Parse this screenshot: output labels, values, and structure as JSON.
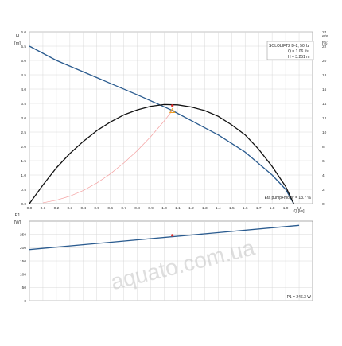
{
  "chart_data": [
    {
      "type": "line",
      "panel": "upper",
      "x_axis": {
        "label": "Q [l/s]",
        "ticks": [
          0,
          0.1,
          0.2,
          0.3,
          0.4,
          0.5,
          0.6,
          0.7,
          0.8,
          0.9,
          1.0,
          1.1,
          1.2,
          1.3,
          1.4,
          1.5,
          1.6,
          1.7,
          1.8,
          1.9,
          2.0
        ],
        "range": [
          0,
          2.1
        ]
      },
      "y_left": {
        "label_symbol": "H",
        "label_unit": "[m]",
        "ticks": [
          0.0,
          0.5,
          1.0,
          1.5,
          2.0,
          2.5,
          3.0,
          3.5,
          4.0,
          4.5,
          5.0,
          5.5,
          6.0
        ],
        "range": [
          0,
          6.0
        ]
      },
      "y_right": {
        "label_symbol": "eta",
        "label_unit": "[%]",
        "ticks": [
          0,
          2,
          4,
          6,
          8,
          10,
          12,
          14,
          16,
          18,
          20,
          22,
          24
        ],
        "range": [
          0,
          24
        ]
      },
      "grid": true,
      "series": [
        {
          "key": "head",
          "axis": "left",
          "color": "#2a5b8f",
          "x": [
            0,
            0.2,
            0.4,
            0.6,
            0.8,
            1.0,
            1.06,
            1.2,
            1.4,
            1.6,
            1.8,
            1.9,
            1.96
          ],
          "y": [
            5.5,
            5.0,
            4.6,
            4.2,
            3.8,
            3.38,
            3.25,
            2.9,
            2.4,
            1.8,
            1.0,
            0.5,
            0.0
          ]
        },
        {
          "key": "efficiency",
          "axis": "right",
          "color": "#111111",
          "x": [
            0,
            0.1,
            0.2,
            0.3,
            0.4,
            0.5,
            0.6,
            0.7,
            0.8,
            0.9,
            1.0,
            1.1,
            1.2,
            1.3,
            1.4,
            1.5,
            1.6,
            1.7,
            1.8,
            1.9,
            1.96
          ],
          "y": [
            0,
            2.6,
            5.0,
            7.0,
            8.7,
            10.2,
            11.4,
            12.4,
            13.1,
            13.6,
            13.85,
            13.8,
            13.5,
            13.0,
            12.2,
            11.0,
            9.6,
            7.6,
            5.2,
            2.4,
            0
          ]
        },
        {
          "key": "system-curve",
          "axis": "left",
          "color": "#f4a0a0",
          "x": [
            0.1,
            0.2,
            0.3,
            0.4,
            0.5,
            0.6,
            0.7,
            0.8,
            0.9,
            1.0,
            1.06
          ],
          "y": [
            0.03,
            0.12,
            0.26,
            0.46,
            0.72,
            1.04,
            1.42,
            1.85,
            2.34,
            2.89,
            3.25
          ]
        }
      ],
      "duty_point": {
        "x": 1.06,
        "y": 3.25,
        "color": "#f0a020"
      },
      "eta_point": {
        "x": 1.06,
        "y": 13.7,
        "color": "#e03030"
      },
      "legend": {
        "title": "SOLOLIFT2 D-2, 50Hz",
        "line_q": "Q = 1.06 l/s",
        "line_h": "H = 3.251 m"
      },
      "annotation": "Eta pump+motor = 13.7 %"
    },
    {
      "type": "line",
      "panel": "lower",
      "x_axis": {
        "range": [
          0,
          2.1
        ]
      },
      "y_left": {
        "label_symbol": "P1",
        "label_unit": "[W]",
        "ticks": [
          0,
          50,
          100,
          150,
          200,
          250
        ],
        "range": [
          0,
          300
        ]
      },
      "grid": true,
      "series": [
        {
          "key": "power",
          "axis": "left",
          "color": "#2a5b8f",
          "x": [
            0,
            2.0
          ],
          "y": [
            193,
            284
          ]
        }
      ],
      "point": {
        "x": 1.06,
        "y": 246.3,
        "color": "#e03030"
      },
      "annotation": "P1 = 246.3 W"
    }
  ],
  "watermark": "aquato.com.ua"
}
